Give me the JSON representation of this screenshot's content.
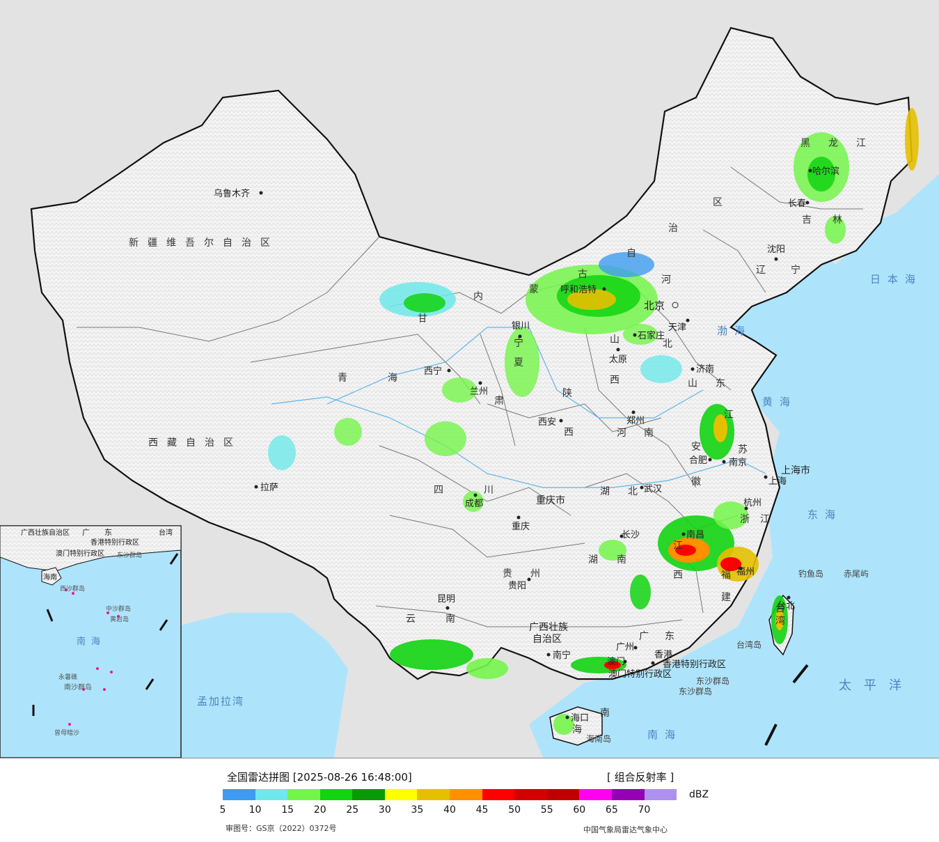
{
  "legend": {
    "title": "全国雷达拼图 [2025-08-26 16:48:00]",
    "product": "[ 组合反射率 ]",
    "unit": "dBZ",
    "colors": [
      "#3d9cf0",
      "#6ee8ea",
      "#74f54a",
      "#12d411",
      "#0a9a08",
      "#ffff00",
      "#e6c000",
      "#ff9000",
      "#ff0000",
      "#d40000",
      "#c00000",
      "#ff00f0",
      "#9600b4",
      "#ad90f0"
    ],
    "ticks": [
      "5",
      "10",
      "15",
      "20",
      "25",
      "30",
      "35",
      "40",
      "45",
      "50",
      "55",
      "60",
      "65",
      "70"
    ],
    "approval": "审图号：GS京（2022）0372号",
    "producer": "中国气象局雷达气象中心"
  },
  "regions": {
    "xinjiang": "新疆维吾尔自治区",
    "xizang": "西藏自治区",
    "qinghai_a": "青",
    "qinghai_b": "海",
    "gansu_a": "甘",
    "gansu_b": "肃",
    "sichuan_a": "四",
    "sichuan_b": "川",
    "yunnan_a": "云",
    "yunnan_b": "南",
    "guizhou_a": "贵",
    "guizhou_b": "州",
    "chongqing": "重庆市",
    "shaanxi_a": "陕",
    "shaanxi_b": "西",
    "shanxi_a": "山",
    "shanxi_b": "西",
    "henan_a": "河",
    "henan_b": "南",
    "hubei_a": "湖",
    "hubei_b": "北",
    "hunan_a": "湖",
    "hunan_b": "南",
    "jiangxi_a": "江",
    "jiangxi_b": "西",
    "guangxi_a": "广西壮族",
    "guangxi_b": "自治区",
    "guangdong_a": "广",
    "guangdong_b": "东",
    "fujian_a": "福",
    "fujian_b": "建",
    "zhejiang_a": "浙",
    "zhejiang_b": "江",
    "anhui_a": "安",
    "anhui_b": "徽",
    "jiangsu_a": "江",
    "jiangsu_b": "苏",
    "shandong_a": "山",
    "shandong_b": "东",
    "hebei_a": "河",
    "hebei_b": "北",
    "shanghai": "上海市",
    "neimenggu_a": "内",
    "neimenggu_b": "蒙",
    "neimenggu_c": "古",
    "neimenggu_d": "自",
    "neimenggu_e": "治",
    "neimenggu_f": "区",
    "liaoning_a": "辽",
    "liaoning_b": "宁",
    "jilin_a": "吉",
    "jilin_b": "林",
    "heilongjiang_a": "黑",
    "heilongjiang_b": "龙",
    "heilongjiang_c": "江",
    "ningxia_a": "宁",
    "ningxia_b": "夏",
    "hainan_a": "海",
    "hainan_b": "南",
    "taiwan_a": "台",
    "taiwan_b": "湾",
    "hongkong": "香港特别行政区",
    "macau": "澳门特别行政区"
  },
  "cities": {
    "urumqi": "乌鲁木齐",
    "lhasa": "拉萨",
    "xining": "西宁",
    "lanzhou": "兰州",
    "yinchuan": "银川",
    "hohhot": "呼和浩特",
    "beijing": "北京",
    "tianjin": "天津",
    "shijiazhuang": "石家庄",
    "taiyuan": "太原",
    "jinan": "济南",
    "zhengzhou": "郑州",
    "xian": "西安",
    "chengdu": "成都",
    "chongqing": "重庆",
    "wuhan": "武汉",
    "hefei": "合肥",
    "nanjing": "南京",
    "shanghai": "上海",
    "hangzhou": "杭州",
    "nanchang": "南昌",
    "changsha": "长沙",
    "guiyang": "贵阳",
    "kunming": "昆明",
    "nanning": "南宁",
    "guangzhou": "广州",
    "hongkong": "香港",
    "macau": "澳门",
    "fuzhou": "福州",
    "taipei": "台北",
    "haikou": "海口",
    "shenyang": "沈阳",
    "changchun": "长春",
    "harbin": "哈尔滨"
  },
  "seas": {
    "japan_sea": "日本海",
    "bohai": "渤海",
    "yellow_sea": "黄海",
    "east_sea": "东海",
    "pacific": "太平洋",
    "south_sea": "南海",
    "bengal": "孟加拉湾"
  },
  "islands": {
    "diaoyu": "钓鱼岛",
    "chiwei": "赤尾屿",
    "taiwan_island": "台湾岛",
    "hainan_island": "海南岛",
    "dongsha_island": "东沙群岛",
    "dongsha": "东沙群岛"
  },
  "inset": {
    "guangdong": "广",
    "dong": "东",
    "guangxi": "广西壮族自治区",
    "hk": "香港特别行政区",
    "macau": "澳门特别行政区",
    "taiwan": "台湾",
    "hainan": "海南",
    "dongsha": "东沙群岛",
    "xisha": "西沙群岛",
    "zhongsha": "中沙群岛",
    "nansha": "南沙群岛",
    "sea": "南海",
    "yongshu": "永暑礁",
    "zengmu": "曾母暗沙",
    "huangyan": "黄岩岛"
  }
}
